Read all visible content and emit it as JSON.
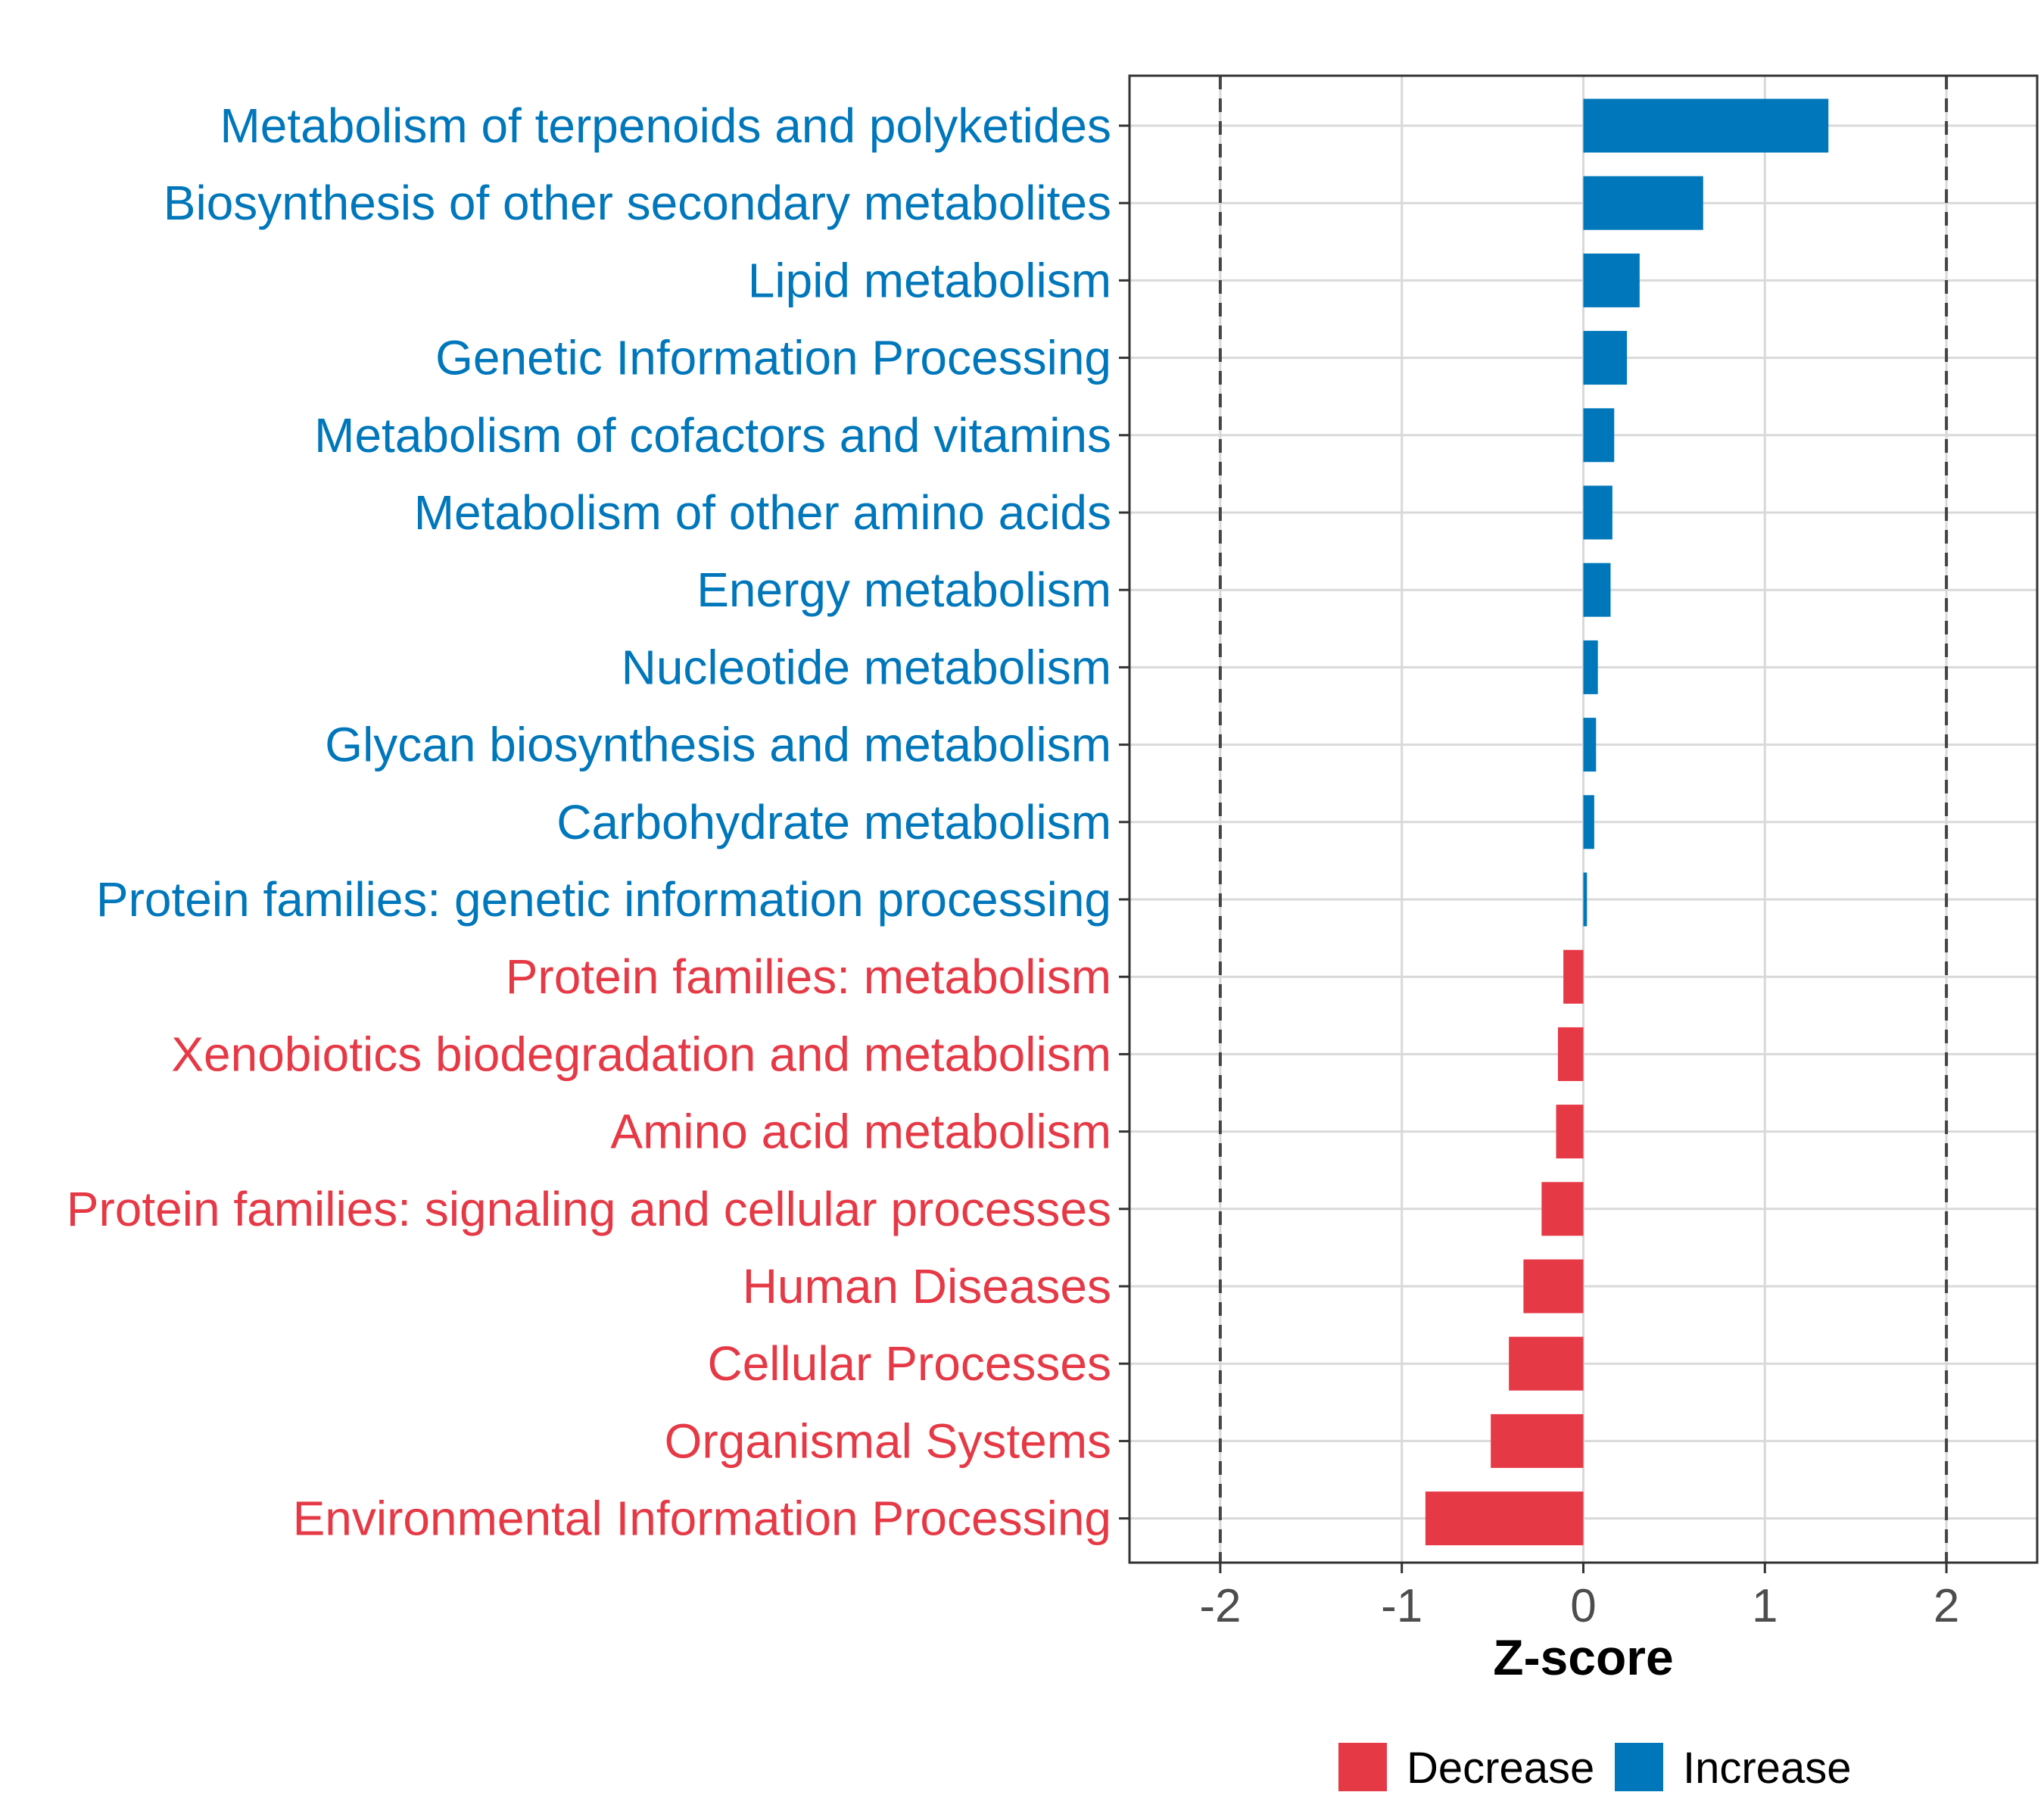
{
  "colors": {
    "increase": "#0077bb",
    "decrease": "#e63946",
    "tick_text": "#4d4d4d",
    "grid": "#d9d9d9",
    "panel_border": "#333333",
    "refline": "#444444"
  },
  "chart_data": {
    "type": "bar",
    "orientation": "horizontal",
    "xlabel": "Z-score",
    "xlim": [
      -2.5,
      2.5
    ],
    "xticks": [
      -2,
      -1,
      0,
      1,
      2
    ],
    "xtick_labels": [
      "-2",
      "-1",
      "0",
      "1",
      "2"
    ],
    "reference_lines": [
      -2,
      2
    ],
    "grid": true,
    "legend_position": "bottom",
    "categories": [
      "Metabolism of terpenoids and polyketides",
      "Biosynthesis of other secondary metabolites",
      "Lipid metabolism",
      "Genetic Information Processing",
      "Metabolism of cofactors and vitamins",
      "Metabolism of other amino acids",
      "Energy metabolism",
      "Nucleotide metabolism",
      "Glycan biosynthesis and metabolism",
      "Carbohydrate metabolism",
      "Protein families: genetic information processing",
      "Protein families: metabolism",
      "Xenobiotics biodegradation and metabolism",
      "Amino acid metabolism",
      "Protein families: signaling and cellular processes",
      "Human Diseases",
      "Cellular Processes",
      "Organismal Systems",
      "Environmental Information Processing"
    ],
    "values": [
      1.35,
      0.66,
      0.31,
      0.24,
      0.17,
      0.16,
      0.15,
      0.08,
      0.07,
      0.06,
      0.02,
      -0.11,
      -0.14,
      -0.15,
      -0.23,
      -0.33,
      -0.41,
      -0.51,
      -0.87
    ],
    "groups": [
      "Increase",
      "Increase",
      "Increase",
      "Increase",
      "Increase",
      "Increase",
      "Increase",
      "Increase",
      "Increase",
      "Increase",
      "Increase",
      "Decrease",
      "Decrease",
      "Decrease",
      "Decrease",
      "Decrease",
      "Decrease",
      "Decrease",
      "Decrease"
    ],
    "legend": [
      {
        "label": "Decrease",
        "color": "#e63946"
      },
      {
        "label": "Increase",
        "color": "#0077bb"
      }
    ]
  }
}
